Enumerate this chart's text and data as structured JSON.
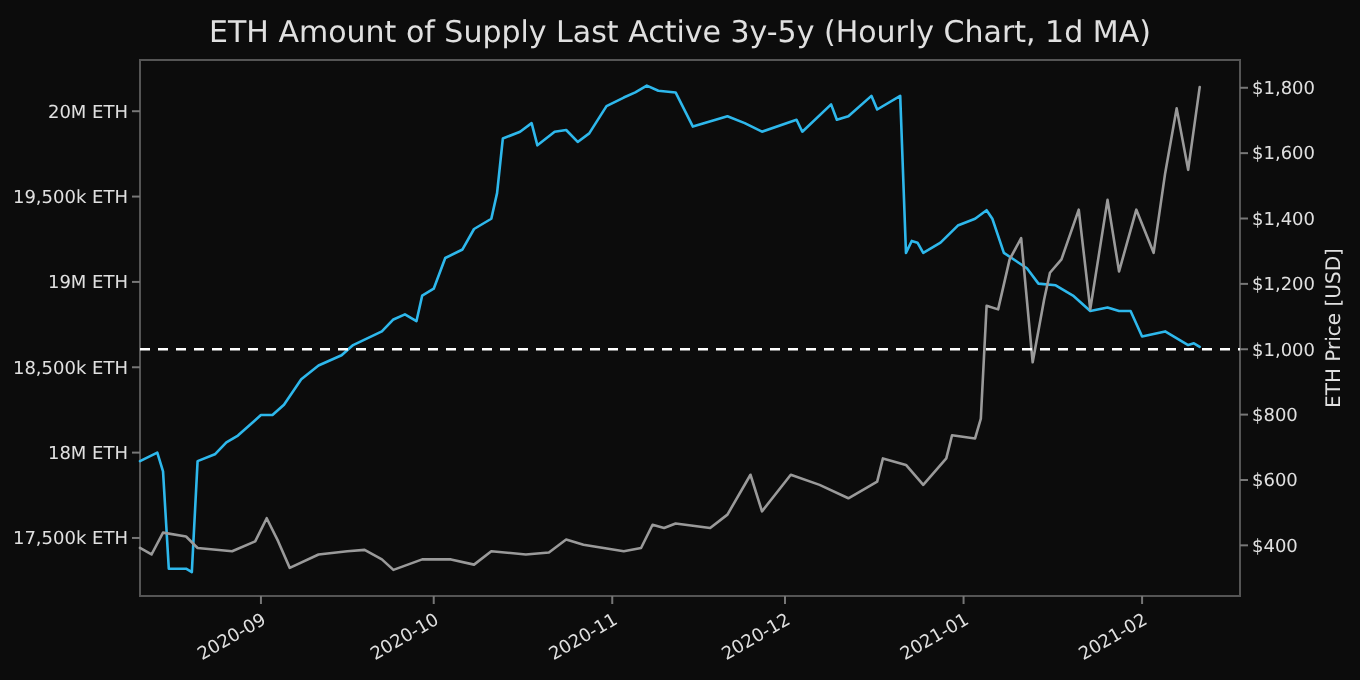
{
  "chart_data": {
    "type": "line",
    "title": "ETH Amount of Supply Last Active 3y-5y (Hourly Chart, 1d MA)",
    "y2label": "ETH Price [USD]",
    "xlim": [
      "2020-08-11",
      "2021-02-18"
    ],
    "xticks": [
      "2020-09",
      "2020-10",
      "2020-11",
      "2020-12",
      "2021-01",
      "2021-02"
    ],
    "ylim": [
      17160000,
      20300000
    ],
    "yticks": [
      {
        "value": 17500000,
        "label": "17,500k ETH"
      },
      {
        "value": 18000000,
        "label": "18M ETH"
      },
      {
        "value": 18500000,
        "label": "18,500k ETH"
      },
      {
        "value": 19000000,
        "label": "19M ETH"
      },
      {
        "value": 19500000,
        "label": "19,500k ETH"
      },
      {
        "value": 20000000,
        "label": "20M ETH"
      }
    ],
    "y2lim": [
      245,
      1885
    ],
    "y2ticks": [
      {
        "value": 400,
        "label": "$400"
      },
      {
        "value": 600,
        "label": "$600"
      },
      {
        "value": 800,
        "label": "$800"
      },
      {
        "value": 1000,
        "label": "$1,000"
      },
      {
        "value": 1200,
        "label": "$1,200"
      },
      {
        "value": 1400,
        "label": "$1,400"
      },
      {
        "value": 1600,
        "label": "$1,600"
      },
      {
        "value": 1800,
        "label": "$1,800"
      }
    ],
    "grid": false,
    "line_style": "solid",
    "ref_lines": [
      {
        "axis": "y2",
        "value": 1000,
        "color": "#ffffff",
        "line_style": "dashed"
      }
    ],
    "series": [
      {
        "color": "#2eb8ec",
        "x": [
          "2020-08-11",
          "2020-08-14",
          "2020-08-15",
          "2020-08-16",
          "2020-08-19",
          "2020-08-20",
          "2020-08-21",
          "2020-08-24",
          "2020-08-26",
          "2020-08-28",
          "2020-09-01",
          "2020-09-03",
          "2020-09-05",
          "2020-09-08",
          "2020-09-11",
          "2020-09-15",
          "2020-09-17",
          "2020-09-22",
          "2020-09-24",
          "2020-09-26",
          "2020-09-28",
          "2020-09-29",
          "2020-10-01",
          "2020-10-03",
          "2020-10-06",
          "2020-10-08",
          "2020-10-11",
          "2020-10-12",
          "2020-10-13",
          "2020-10-16",
          "2020-10-18",
          "2020-10-19",
          "2020-10-22",
          "2020-10-24",
          "2020-10-26",
          "2020-10-28",
          "2020-10-31",
          "2020-11-03",
          "2020-11-05",
          "2020-11-07",
          "2020-11-09",
          "2020-11-12",
          "2020-11-15",
          "2020-11-21",
          "2020-11-24",
          "2020-11-27",
          "2020-12-03",
          "2020-12-04",
          "2020-12-09",
          "2020-12-10",
          "2020-12-12",
          "2020-12-16",
          "2020-12-17",
          "2020-12-21",
          "2020-12-22",
          "2020-12-23",
          "2020-12-24",
          "2020-12-25",
          "2020-12-28",
          "2020-12-31",
          "2021-01-03",
          "2021-01-05",
          "2021-01-06",
          "2021-01-08",
          "2021-01-12",
          "2021-01-14",
          "2021-01-17",
          "2021-01-20",
          "2021-01-23",
          "2021-01-26",
          "2021-01-28",
          "2021-01-30",
          "2021-02-01",
          "2021-02-05",
          "2021-02-09",
          "2021-02-10",
          "2021-02-11"
        ],
        "values": [
          17950000,
          18000000,
          17890000,
          17320000,
          17320000,
          17300000,
          17950000,
          17990000,
          18060000,
          18100000,
          18220000,
          18220000,
          18280000,
          18430000,
          18510000,
          18570000,
          18630000,
          18710000,
          18780000,
          18810000,
          18770000,
          18920000,
          18960000,
          19140000,
          19190000,
          19310000,
          19370000,
          19520000,
          19840000,
          19880000,
          19930000,
          19800000,
          19880000,
          19890000,
          19820000,
          19870000,
          20030000,
          20080000,
          20110000,
          20150000,
          20120000,
          20110000,
          19910000,
          19970000,
          19930000,
          19880000,
          19950000,
          19880000,
          20040000,
          19950000,
          19970000,
          20090000,
          20010000,
          20090000,
          19170000,
          19240000,
          19230000,
          19170000,
          19230000,
          19330000,
          19370000,
          19420000,
          19370000,
          19170000,
          19080000,
          18990000,
          18980000,
          18920000,
          18830000,
          18850000,
          18830000,
          18830000,
          18680000,
          18710000,
          18630000,
          18640000,
          18620000
        ]
      },
      {
        "color": "#9a9a9a",
        "axis": "y2",
        "x": [
          "2020-08-11",
          "2020-08-13",
          "2020-08-15",
          "2020-08-19",
          "2020-08-21",
          "2020-08-27",
          "2020-08-31",
          "2020-09-02",
          "2020-09-04",
          "2020-09-06",
          "2020-09-11",
          "2020-09-16",
          "2020-09-19",
          "2020-09-22",
          "2020-09-24",
          "2020-09-29",
          "2020-10-04",
          "2020-10-08",
          "2020-10-11",
          "2020-10-17",
          "2020-10-21",
          "2020-10-24",
          "2020-10-27",
          "2020-11-03",
          "2020-11-06",
          "2020-11-08",
          "2020-11-10",
          "2020-11-12",
          "2020-11-18",
          "2020-11-21",
          "2020-11-25",
          "2020-11-27",
          "2020-12-02",
          "2020-12-07",
          "2020-12-12",
          "2020-12-17",
          "2020-12-18",
          "2020-12-22",
          "2020-12-25",
          "2020-12-29",
          "2020-12-30",
          "2021-01-03",
          "2021-01-04",
          "2021-01-05",
          "2021-01-07",
          "2021-01-09",
          "2021-01-11",
          "2021-01-13",
          "2021-01-15",
          "2021-01-16",
          "2021-01-18",
          "2021-01-21",
          "2021-01-23",
          "2021-01-26",
          "2021-01-28",
          "2021-01-31",
          "2021-02-03",
          "2021-02-05",
          "2021-02-07",
          "2021-02-09",
          "2021-02-11"
        ],
        "values": [
          392,
          372,
          439,
          427,
          392,
          382,
          412,
          483,
          412,
          331,
          372,
          382,
          386,
          357,
          325,
          357,
          357,
          341,
          382,
          372,
          378,
          418,
          402,
          382,
          392,
          463,
          453,
          467,
          453,
          494,
          616,
          504,
          616,
          585,
          544,
          595,
          666,
          646,
          585,
          666,
          737,
          727,
          788,
          1133,
          1122,
          1275,
          1340,
          960,
          1153,
          1234,
          1275,
          1427,
          1122,
          1457,
          1238,
          1427,
          1295,
          1538,
          1737,
          1549,
          1802
        ]
      }
    ]
  }
}
